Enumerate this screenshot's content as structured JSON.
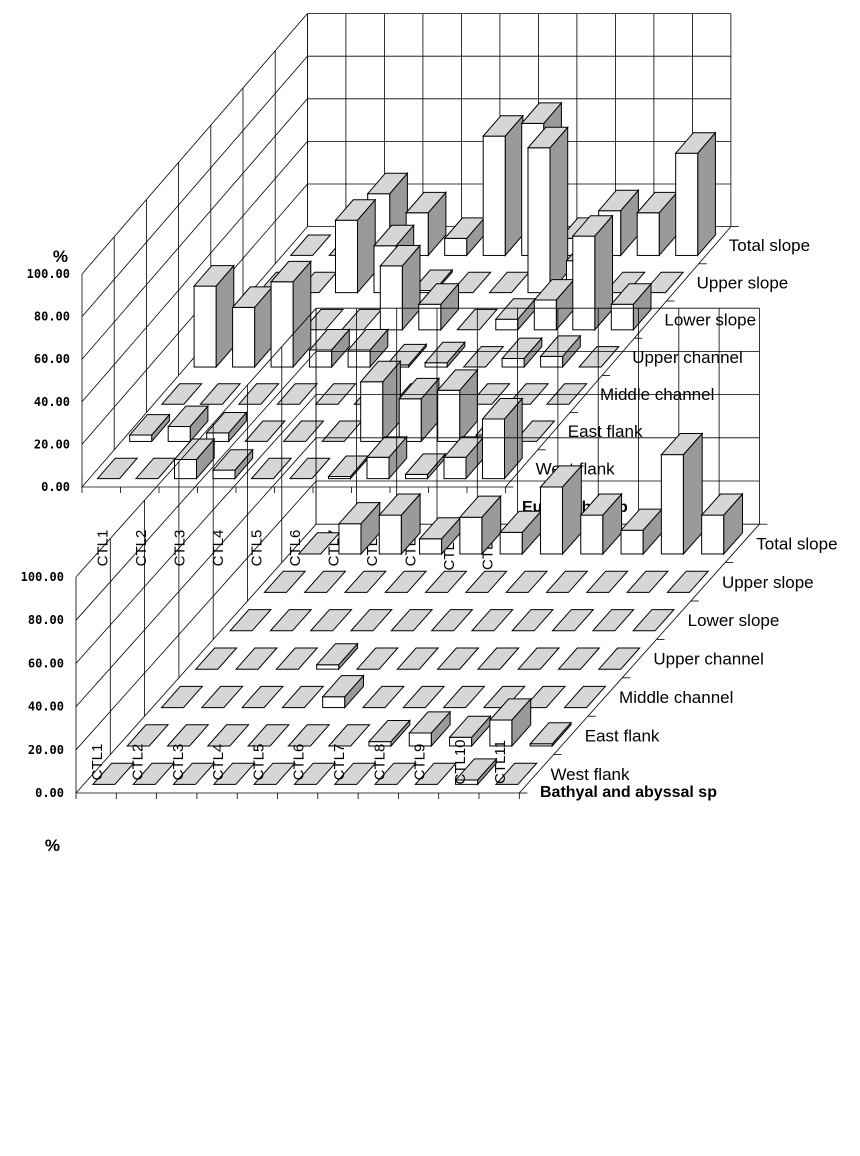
{
  "chart_data": [
    {
      "type": "bar",
      "title": "Eurybathic sp",
      "ylabel": "%",
      "ylim": [
        0,
        100
      ],
      "yticks": [
        "0.00",
        "20.00",
        "40.00",
        "60.00",
        "80.00",
        "100.00"
      ],
      "categories": [
        "CTL1",
        "CTL2",
        "CTL3",
        "CTL4",
        "CTL5",
        "CTL6",
        "CTL7",
        "CTL8",
        "CTL9",
        "CTL10",
        "CTL11"
      ],
      "series": [
        {
          "name": "West flank",
          "values": [
            0,
            0,
            9,
            4,
            0,
            0,
            1,
            10,
            2,
            10,
            28
          ]
        },
        {
          "name": "East flank",
          "values": [
            3,
            7,
            4,
            0,
            0,
            0,
            28,
            20,
            24,
            3,
            0
          ]
        },
        {
          "name": "Middle channel",
          "values": [
            0,
            0,
            0,
            0,
            0,
            0,
            0,
            0,
            0,
            0,
            0
          ]
        },
        {
          "name": "Upper channel",
          "values": [
            38,
            28,
            40,
            8,
            8,
            1,
            2,
            0,
            4,
            5,
            0
          ]
        },
        {
          "name": "Lower slope",
          "values": [
            0,
            0,
            0,
            0,
            30,
            12,
            0,
            5,
            14,
            44,
            12
          ]
        },
        {
          "name": "Upper slope",
          "values": [
            0,
            0,
            34,
            22,
            1,
            0,
            0,
            68,
            15,
            0,
            0
          ]
        },
        {
          "name": "Total slope",
          "values": [
            0,
            0,
            29,
            20,
            8,
            56,
            62,
            8,
            21,
            20,
            48
          ]
        }
      ]
    },
    {
      "type": "bar",
      "title": "Bathyal and abyssal sp",
      "ylabel": "%",
      "ylim": [
        0,
        100
      ],
      "yticks": [
        "0.00",
        "20.00",
        "40.00",
        "60.00",
        "80.00",
        "100.00"
      ],
      "categories": [
        "CTL1",
        "CTL2",
        "CTL3",
        "CTL4",
        "CTL5",
        "CTL6",
        "CTL7",
        "CTL8",
        "CTL9",
        "CTL10",
        "CTL11"
      ],
      "series": [
        {
          "name": "West flank",
          "values": [
            0,
            0,
            0,
            0,
            0,
            0,
            0,
            0,
            0,
            2,
            0
          ]
        },
        {
          "name": "East flank",
          "values": [
            0,
            0,
            0,
            0,
            0,
            0,
            2,
            6,
            4,
            12,
            1
          ]
        },
        {
          "name": "Middle channel",
          "values": [
            0,
            0,
            0,
            0,
            5,
            0,
            0,
            0,
            0,
            0,
            0
          ]
        },
        {
          "name": "Upper channel",
          "values": [
            0,
            0,
            0,
            2,
            0,
            0,
            0,
            0,
            0,
            0,
            0
          ]
        },
        {
          "name": "Lower slope",
          "values": [
            0,
            0,
            0,
            0,
            0,
            0,
            0,
            0,
            0,
            0,
            0
          ]
        },
        {
          "name": "Upper slope",
          "values": [
            0,
            0,
            0,
            0,
            0,
            0,
            0,
            0,
            0,
            0,
            0
          ]
        },
        {
          "name": "Total slope",
          "values": [
            0,
            14,
            18,
            7,
            17,
            10,
            31,
            18,
            11,
            46,
            18
          ]
        }
      ]
    }
  ]
}
